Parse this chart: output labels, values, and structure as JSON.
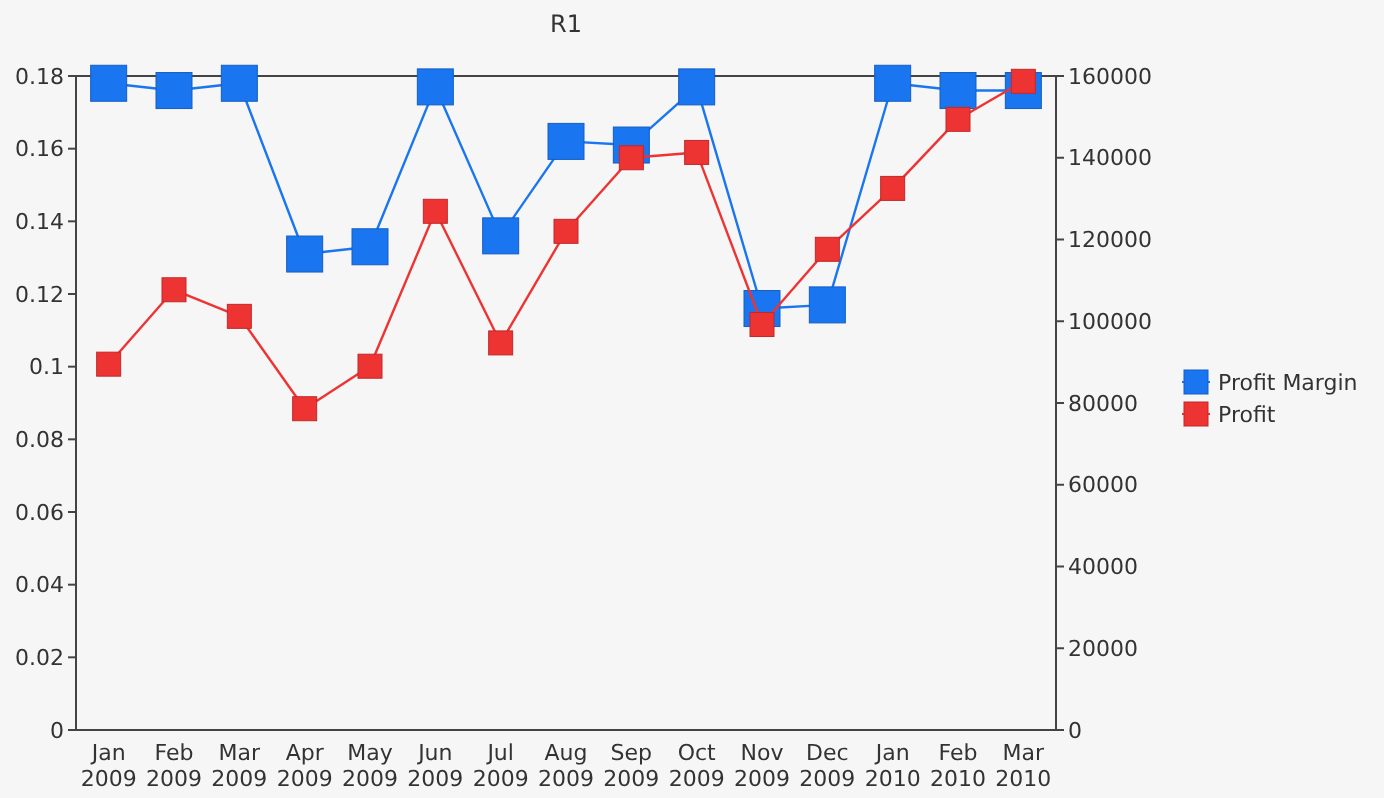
{
  "chart_data": {
    "type": "line",
    "title": "R1",
    "categories": [
      "Jan\n2009",
      "Feb\n2009",
      "Mar\n2009",
      "Apr\n2009",
      "May\n2009",
      "Jun\n2009",
      "Jul\n2009",
      "Aug\n2009",
      "Sep\n2009",
      "Oct\n2009",
      "Nov\n2009",
      "Dec\n2009",
      "Jan\n2010",
      "Feb\n2010",
      "Mar\n2010"
    ],
    "series": [
      {
        "name": "Profit Margin",
        "color": "#1a75f0",
        "values": [
          0.178,
          0.176,
          0.178,
          0.131,
          0.133,
          0.177,
          0.136,
          0.162,
          0.161,
          0.177,
          0.116,
          0.117,
          0.178,
          0.176,
          0.176
        ]
      },
      {
        "name": "Profit",
        "color": "#ee3333",
        "axis": "y2",
        "values": [
          89500,
          107700,
          101200,
          78600,
          89000,
          126900,
          94700,
          122000,
          140000,
          141300,
          99200,
          117600,
          132500,
          149400,
          158700
        ]
      }
    ],
    "ylim": [
      0,
      0.18
    ],
    "yticks": [
      0,
      0.02,
      0.04,
      0.06,
      0.08,
      0.1,
      0.12,
      0.14,
      0.16,
      0.18
    ],
    "y2lim": [
      0,
      160000
    ],
    "y2ticks": [
      0,
      20000,
      40000,
      60000,
      80000,
      100000,
      120000,
      140000,
      160000
    ],
    "marker": "square",
    "legend": "right",
    "grid": false
  }
}
